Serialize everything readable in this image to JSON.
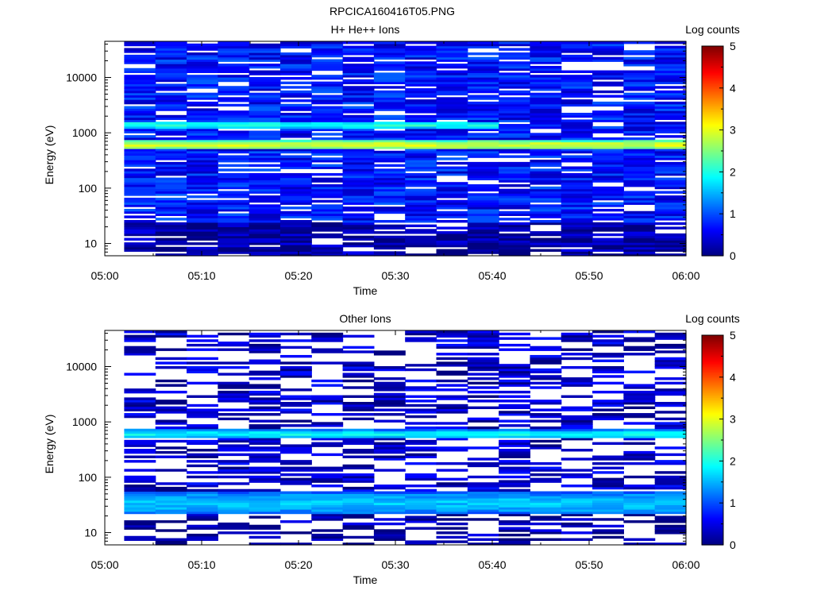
{
  "figure_title": "RPCICA160416T05.PNG",
  "colormap": [
    "#00007f",
    "#0000ff",
    "#007fff",
    "#00ffff",
    "#7fff7f",
    "#ffff00",
    "#ff7f00",
    "#ff0000",
    "#7f0000"
  ],
  "chart_data": [
    {
      "type": "heatmap",
      "title": "H+ He++ Ions",
      "xlabel": "Time",
      "ylabel": "Energy (eV)",
      "x_ticks": [
        "05:00",
        "05:10",
        "05:20",
        "05:30",
        "05:40",
        "05:50",
        "06:00"
      ],
      "xlim": [
        "05:00",
        "06:00"
      ],
      "y_scale": "log",
      "y_ticks": [
        "10",
        "100",
        "1000",
        "10000"
      ],
      "ylim": [
        6,
        45000
      ],
      "colorbar": {
        "label": "Log counts",
        "ticks": [
          "0",
          "1",
          "2",
          "3",
          "4",
          "5"
        ],
        "range": [
          0,
          5
        ]
      },
      "time_start": "05:02",
      "time_end": "06:00",
      "time_bins": 18,
      "energy_bins": 96,
      "bands": [
        {
          "e_min": 500,
          "e_max": 750,
          "level": 2.9
        },
        {
          "e_min": 1200,
          "e_max": 1650,
          "level": 2.0,
          "t_end": "05:41"
        }
      ],
      "background": {
        "level": 0.7,
        "low_energy_level": 0.15,
        "gap_fraction": 0.18
      }
    },
    {
      "type": "heatmap",
      "title": "Other Ions",
      "xlabel": "Time",
      "ylabel": "Energy (eV)",
      "x_ticks": [
        "05:00",
        "05:10",
        "05:20",
        "05:30",
        "05:40",
        "05:50",
        "06:00"
      ],
      "xlim": [
        "05:00",
        "06:00"
      ],
      "y_scale": "log",
      "y_ticks": [
        "10",
        "100",
        "1000",
        "10000"
      ],
      "ylim": [
        6,
        45000
      ],
      "colorbar": {
        "label": "Log counts",
        "ticks": [
          "0",
          "1",
          "2",
          "3",
          "4",
          "5"
        ],
        "range": [
          0,
          5
        ]
      },
      "time_start": "05:02",
      "time_end": "06:00",
      "time_bins": 18,
      "energy_bins": 96,
      "bands": [
        {
          "e_min": 520,
          "e_max": 720,
          "level": 1.9
        },
        {
          "e_min": 22,
          "e_max": 55,
          "level": 1.6
        }
      ],
      "background": {
        "level": 0.35,
        "low_energy_level": 0.15,
        "gap_fraction": 0.55
      }
    }
  ]
}
